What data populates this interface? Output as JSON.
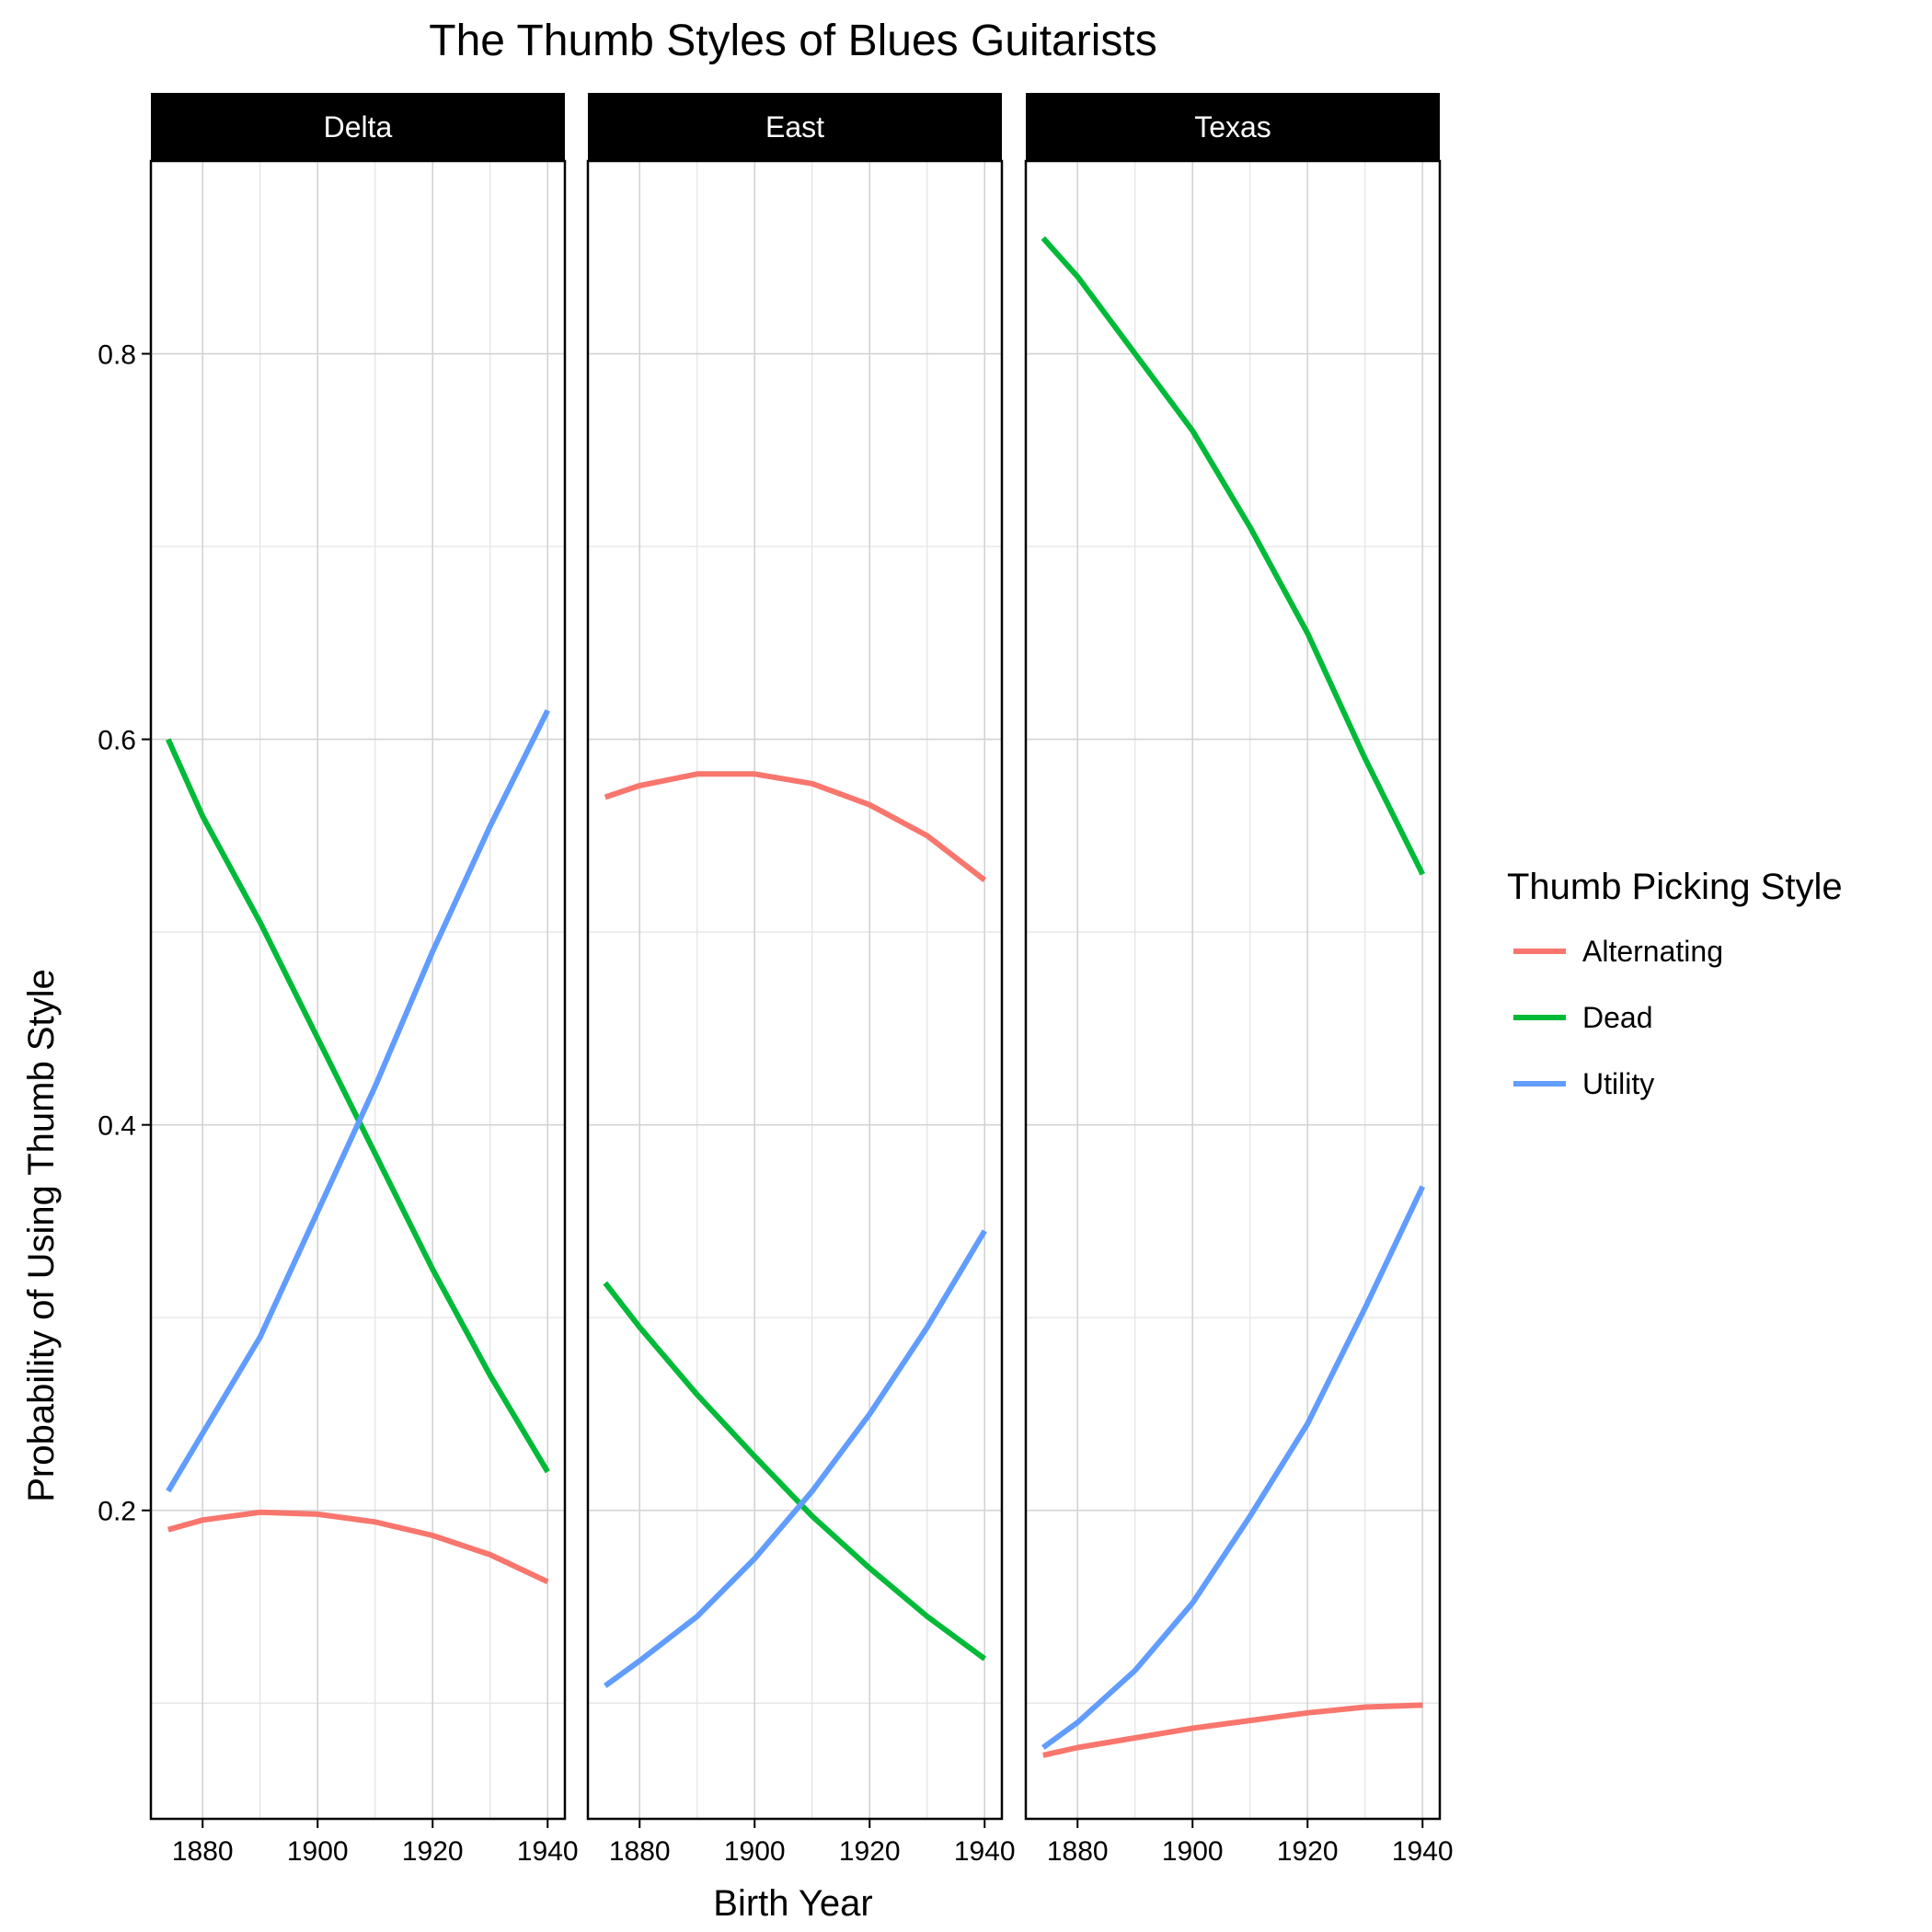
{
  "chart_data": {
    "type": "line",
    "title": "The Thumb Styles of Blues Guitarists",
    "xlabel": "Birth Year",
    "ylabel": "Probability of Using Thumb Style",
    "xlim": [
      1871,
      1943
    ],
    "ylim": [
      0.04,
      0.9
    ],
    "x_ticks": [
      1880,
      1900,
      1920,
      1940
    ],
    "y_ticks": [
      0.2,
      0.4,
      0.6,
      0.8
    ],
    "y_tick_labels": [
      "0.2",
      "0.4",
      "0.6",
      "0.8"
    ],
    "grid": true,
    "legend": {
      "title": "Thumb Picking Style",
      "position": "right"
    },
    "series_styles": [
      {
        "name": "Alternating",
        "color": "#F8766D"
      },
      {
        "name": "Dead",
        "color": "#00BA38"
      },
      {
        "name": "Utility",
        "color": "#619CFF"
      }
    ],
    "panels": [
      {
        "name": "Delta",
        "series": [
          {
            "name": "Alternating",
            "x": [
              1874,
              1880,
              1890,
              1900,
              1910,
              1920,
              1930,
              1940
            ],
            "values": [
              0.19,
              0.195,
              0.199,
              0.198,
              0.194,
              0.187,
              0.177,
              0.163
            ]
          },
          {
            "name": "Dead",
            "x": [
              1874,
              1880,
              1890,
              1900,
              1910,
              1920,
              1930,
              1940
            ],
            "values": [
              0.6,
              0.56,
              0.505,
              0.445,
              0.385,
              0.325,
              0.27,
              0.22
            ]
          },
          {
            "name": "Utility",
            "x": [
              1874,
              1880,
              1890,
              1900,
              1910,
              1920,
              1930,
              1940
            ],
            "values": [
              0.21,
              0.24,
              0.29,
              0.355,
              0.42,
              0.49,
              0.555,
              0.615
            ]
          }
        ]
      },
      {
        "name": "East",
        "series": [
          {
            "name": "Alternating",
            "x": [
              1874,
              1880,
              1890,
              1900,
              1910,
              1920,
              1930,
              1940
            ],
            "values": [
              0.57,
              0.576,
              0.582,
              0.582,
              0.577,
              0.566,
              0.55,
              0.527
            ]
          },
          {
            "name": "Dead",
            "x": [
              1874,
              1880,
              1890,
              1900,
              1910,
              1920,
              1930,
              1940
            ],
            "values": [
              0.318,
              0.295,
              0.26,
              0.228,
              0.197,
              0.17,
              0.145,
              0.123
            ]
          },
          {
            "name": "Utility",
            "x": [
              1874,
              1880,
              1890,
              1900,
              1910,
              1920,
              1930,
              1940
            ],
            "values": [
              0.109,
              0.122,
              0.145,
              0.175,
              0.21,
              0.25,
              0.295,
              0.345
            ]
          }
        ]
      },
      {
        "name": "Texas",
        "series": [
          {
            "name": "Alternating",
            "x": [
              1874,
              1880,
              1890,
              1900,
              1910,
              1920,
              1930,
              1940
            ],
            "values": [
              0.073,
              0.077,
              0.082,
              0.087,
              0.091,
              0.095,
              0.098,
              0.099
            ]
          },
          {
            "name": "Dead",
            "x": [
              1874,
              1880,
              1890,
              1900,
              1910,
              1920,
              1930,
              1940
            ],
            "values": [
              0.86,
              0.84,
              0.8,
              0.76,
              0.71,
              0.655,
              0.59,
              0.53
            ]
          },
          {
            "name": "Utility",
            "x": [
              1874,
              1880,
              1890,
              1900,
              1910,
              1920,
              1930,
              1940
            ],
            "values": [
              0.077,
              0.09,
              0.117,
              0.152,
              0.197,
              0.245,
              0.305,
              0.368
            ]
          }
        ]
      }
    ]
  }
}
